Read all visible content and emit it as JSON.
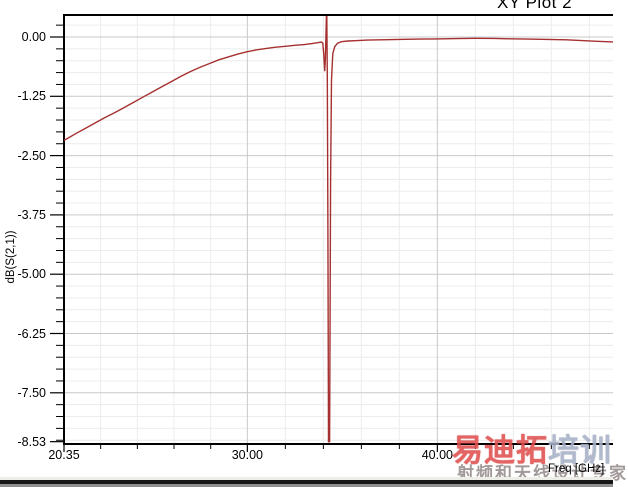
{
  "window": {
    "title": "XY Plot 2"
  },
  "chart_data": {
    "type": "line",
    "title": "XY Plot 2",
    "xlabel": "Freq [GHz]",
    "ylabel": "dB(S(2,1))",
    "xlim": [
      20.35,
      49.3
    ],
    "ylim": [
      -8.58,
      0.46
    ],
    "grid": true,
    "legend": false,
    "curve_color": "#a63030",
    "grid_minor_color": "#ececec",
    "grid_major_color": "#c9c9c9",
    "border_color": "#000000",
    "x_major_ticks": [
      {
        "value": 20.35,
        "label": "20.35"
      },
      {
        "value": 30.0,
        "label": "30.00"
      },
      {
        "value": 40.0,
        "label": "40.00"
      }
    ],
    "x_minor_ticks": [
      22.28,
      24.21,
      26.14,
      28.07,
      32,
      34,
      36,
      38,
      42,
      44,
      46,
      48
    ],
    "y_major_ticks": [
      {
        "value": 0.0,
        "label": "0.00"
      },
      {
        "value": -1.25,
        "label": "-1.25"
      },
      {
        "value": -2.5,
        "label": "-2.50"
      },
      {
        "value": -3.75,
        "label": "-3.75"
      },
      {
        "value": -5.0,
        "label": "-5.00"
      },
      {
        "value": -6.25,
        "label": "-6.25"
      },
      {
        "value": -7.5,
        "label": "-7.50"
      },
      {
        "value": -8.53,
        "label": "-8.53"
      }
    ],
    "y_minor_step": 0.25,
    "series": [
      {
        "name": "dB(S(2,1))",
        "color": "#a63030",
        "points": [
          [
            20.35,
            -2.18
          ],
          [
            20.7,
            -2.1
          ],
          [
            21,
            -2.03
          ],
          [
            21.5,
            -1.92
          ],
          [
            22,
            -1.81
          ],
          [
            22.5,
            -1.7
          ],
          [
            23,
            -1.6
          ],
          [
            23.5,
            -1.49
          ],
          [
            24,
            -1.38
          ],
          [
            24.5,
            -1.27
          ],
          [
            25,
            -1.16
          ],
          [
            25.5,
            -1.05
          ],
          [
            26,
            -0.94
          ],
          [
            26.5,
            -0.83
          ],
          [
            27,
            -0.73
          ],
          [
            27.5,
            -0.64
          ],
          [
            28,
            -0.56
          ],
          [
            28.5,
            -0.48
          ],
          [
            29,
            -0.42
          ],
          [
            29.5,
            -0.36
          ],
          [
            30,
            -0.31
          ],
          [
            30.5,
            -0.27
          ],
          [
            31,
            -0.24
          ],
          [
            31.5,
            -0.215
          ],
          [
            32,
            -0.195
          ],
          [
            32.5,
            -0.175
          ],
          [
            33,
            -0.16
          ],
          [
            33.4,
            -0.14
          ],
          [
            33.7,
            -0.12
          ],
          [
            33.9,
            -0.105
          ],
          [
            33.97,
            -0.13
          ],
          [
            34.02,
            -0.35
          ],
          [
            34.07,
            -0.72
          ],
          [
            34.1,
            -0.5
          ],
          [
            34.13,
            -0.1
          ],
          [
            34.16,
            0.46
          ],
          [
            34.18,
            0.46
          ],
          [
            34.21,
            -0.8
          ],
          [
            34.24,
            -4.0
          ],
          [
            34.27,
            -8.53
          ],
          [
            34.33,
            -8.53
          ],
          [
            34.38,
            -3.0
          ],
          [
            34.43,
            -0.9
          ],
          [
            34.5,
            -0.35
          ],
          [
            34.6,
            -0.2
          ],
          [
            34.75,
            -0.13
          ],
          [
            34.95,
            -0.1
          ],
          [
            35.3,
            -0.085
          ],
          [
            35.8,
            -0.075
          ],
          [
            36.3,
            -0.065
          ],
          [
            37,
            -0.06
          ],
          [
            38,
            -0.05
          ],
          [
            39,
            -0.045
          ],
          [
            40,
            -0.04
          ],
          [
            41,
            -0.033
          ],
          [
            42,
            -0.028
          ],
          [
            43,
            -0.03
          ],
          [
            43.8,
            -0.038
          ],
          [
            44.8,
            -0.044
          ],
          [
            45.8,
            -0.05
          ],
          [
            46.8,
            -0.06
          ],
          [
            47.6,
            -0.075
          ],
          [
            48.4,
            -0.09
          ],
          [
            49.3,
            -0.105
          ]
        ]
      }
    ]
  },
  "watermark": {
    "line1_red": "易迪拓",
    "line1_blue": "培训",
    "line2": "射频和天线设计专家"
  }
}
